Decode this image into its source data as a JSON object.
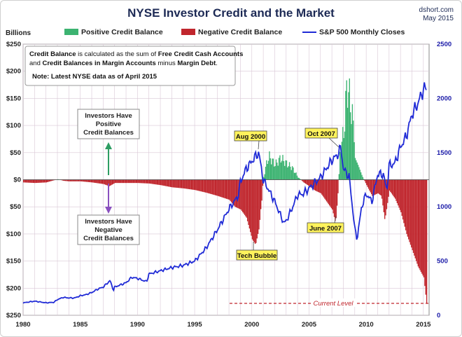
{
  "chart_data": {
    "type": "bar+line",
    "title": "NYSE Investor Credit and the Market",
    "source": "dshort.com",
    "date": "May 2015",
    "left_axis_unit": "Billions",
    "left_ylim": [
      -250,
      250
    ],
    "right_ylim": [
      0,
      2500
    ],
    "left_ticks": [
      "$250",
      "$200",
      "$150",
      "$100",
      "$50",
      "$0",
      "$50",
      "$100",
      "$150",
      "$200",
      "$250"
    ],
    "right_ticks": [
      "0",
      "500",
      "1000",
      "1500",
      "2000",
      "2500"
    ],
    "x_ticks": [
      "1980",
      "1985",
      "1990",
      "1995",
      "2000",
      "2005",
      "2010",
      "2015"
    ],
    "legend": [
      {
        "name": "Positive Credit Balance",
        "color": "#3cb371"
      },
      {
        "name": "Negative Credit Balance",
        "color": "#c0262d"
      },
      {
        "name": "S&P 500 Monthly Closes",
        "color": "#1f2ad6"
      }
    ],
    "note": {
      "line1_a": "Credit Balance",
      "line1_b": " is calculated as the sum of ",
      "line1_c": "Free Credit Cash Accounts",
      "line2_a": "and ",
      "line2_b": "Credit Balances in Margin Accounts",
      "line2_c": " minus ",
      "line2_d": "Margin Debt",
      "line2_e": ".",
      "line3": "Note: Latest NYSE data as of April 2015"
    },
    "positive_box": [
      "Investors Have",
      "Positive",
      "Credit Balances"
    ],
    "negative_box": [
      "Investors Have",
      "Negative",
      "Credit Balances"
    ],
    "callouts": [
      {
        "label": "Aug 2000",
        "x": 2000.6,
        "y": 1520
      },
      {
        "label": "Oct 2007",
        "x": 2007.8,
        "y": 1550
      },
      {
        "label": "Tech Bubble",
        "x": 2000.2,
        "y": -120
      },
      {
        "label": "June 2007",
        "x": 2007.4,
        "y": -80
      }
    ],
    "current_level": {
      "label": "Current Level",
      "value": -228,
      "x_start": 1998
    },
    "credit_balance_series": {
      "name": "Credit Balance",
      "x": [
        1980,
        1981,
        1982,
        1982.5,
        1983,
        1983.5,
        1984,
        1985,
        1986,
        1987,
        1987.5,
        1988,
        1989,
        1990,
        1991,
        1992,
        1993,
        1994,
        1995,
        1996,
        1997,
        1998,
        1998.5,
        1999,
        1999.5,
        2000,
        2000.3,
        2000.6,
        2001,
        2001.3,
        2001.5,
        2002,
        2002.5,
        2003,
        2003.5,
        2004,
        2004.5,
        2005,
        2005.5,
        2006,
        2006.5,
        2007,
        2007.3,
        2007.5,
        2007.7,
        2008,
        2008.3,
        2008.5,
        2008.8,
        2009,
        2009.3,
        2009.6,
        2010,
        2010.5,
        2011,
        2011.3,
        2011.6,
        2012,
        2012.5,
        2013,
        2013.5,
        2014,
        2014.5,
        2015,
        2015.25
      ],
      "y": [
        -5,
        -6,
        -5,
        -2,
        1,
        -2,
        -3,
        -3,
        -5,
        -8,
        -12,
        -6,
        -6,
        -6,
        -7,
        -10,
        -14,
        -16,
        -19,
        -24,
        -30,
        -37,
        -50,
        -55,
        -70,
        -110,
        -120,
        -90,
        5,
        35,
        42,
        28,
        40,
        30,
        22,
        5,
        -5,
        -12,
        -20,
        -25,
        -40,
        -55,
        -80,
        -25,
        60,
        85,
        180,
        150,
        110,
        40,
        25,
        8,
        -10,
        -30,
        -25,
        -30,
        -75,
        -20,
        -35,
        -60,
        -100,
        -130,
        -160,
        -180,
        -228
      ]
    },
    "sp500_series": {
      "name": "S&P 500 Monthly Closes",
      "x": [
        1980,
        1981,
        1982,
        1982.7,
        1983,
        1983.5,
        1984,
        1984.5,
        1985,
        1985.5,
        1986,
        1986.5,
        1987,
        1987.6,
        1987.9,
        1988,
        1989,
        1989.5,
        1990,
        1990.8,
        1991,
        1992,
        1993,
        1994,
        1995,
        1996,
        1997,
        1998,
        1998.8,
        1999,
        1999.5,
        2000,
        2000.6,
        2001,
        2001.5,
        2002,
        2002.8,
        2003,
        2003.5,
        2004,
        2004.5,
        2005,
        2006,
        2007,
        2007.5,
        2007.8,
        2008,
        2008.5,
        2008.9,
        2009,
        2009.2,
        2009.6,
        2010,
        2010.5,
        2011,
        2011.5,
        2011.8,
        2012,
        2012.5,
        2013,
        2013.5,
        2014,
        2014.5,
        2015,
        2015.3
      ],
      "y": [
        115,
        130,
        115,
        120,
        145,
        165,
        160,
        160,
        180,
        190,
        210,
        240,
        260,
        320,
        230,
        260,
        300,
        350,
        340,
        310,
        380,
        410,
        440,
        460,
        500,
        620,
        790,
        980,
        1100,
        1230,
        1350,
        1420,
        1500,
        1250,
        1150,
        1050,
        850,
        870,
        980,
        1110,
        1120,
        1170,
        1270,
        1430,
        1480,
        1550,
        1350,
        1280,
        900,
        800,
        700,
        1000,
        1120,
        1050,
        1300,
        1300,
        1150,
        1380,
        1400,
        1550,
        1650,
        1850,
        1950,
        2080,
        2100
      ]
    }
  }
}
